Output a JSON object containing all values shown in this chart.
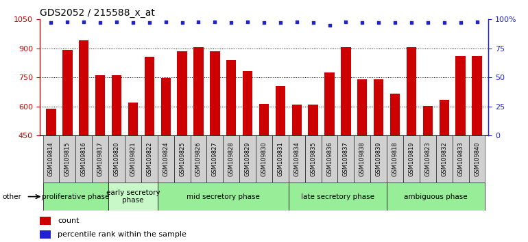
{
  "title": "GDS2052 / 215588_x_at",
  "samples": [
    "GSM109814",
    "GSM109815",
    "GSM109816",
    "GSM109817",
    "GSM109820",
    "GSM109821",
    "GSM109822",
    "GSM109824",
    "GSM109825",
    "GSM109826",
    "GSM109827",
    "GSM109828",
    "GSM109829",
    "GSM109830",
    "GSM109831",
    "GSM109834",
    "GSM109835",
    "GSM109836",
    "GSM109837",
    "GSM109838",
    "GSM109839",
    "GSM109818",
    "GSM109819",
    "GSM109823",
    "GSM109832",
    "GSM109833",
    "GSM109840"
  ],
  "counts": [
    590,
    893,
    940,
    762,
    762,
    620,
    856,
    748,
    884,
    908,
    886,
    840,
    784,
    614,
    705,
    608,
    608,
    775,
    905,
    742,
    742,
    668,
    905,
    601,
    635,
    859,
    862
  ],
  "percentile": [
    97,
    98,
    98,
    97,
    98,
    97,
    97,
    98,
    97,
    98,
    98,
    97,
    98,
    97,
    97,
    98,
    97,
    95,
    98,
    97,
    97,
    97,
    97,
    97,
    97,
    97,
    98
  ],
  "phases": [
    {
      "name": "proliferative phase",
      "start": 0,
      "end": 4,
      "color": "#98ee98"
    },
    {
      "name": "early secretory\nphase",
      "start": 4,
      "end": 7,
      "color": "#c8f8c8"
    },
    {
      "name": "mid secretory phase",
      "start": 7,
      "end": 15,
      "color": "#98ee98"
    },
    {
      "name": "late secretory phase",
      "start": 15,
      "end": 21,
      "color": "#98ee98"
    },
    {
      "name": "ambiguous phase",
      "start": 21,
      "end": 27,
      "color": "#98ee98"
    }
  ],
  "ylim_left": [
    450,
    1050
  ],
  "yticks_left": [
    450,
    600,
    750,
    900,
    1050
  ],
  "ylim_right": [
    0,
    100
  ],
  "yticks_right": [
    0,
    25,
    50,
    75,
    100
  ],
  "bar_color": "#CC0000",
  "dot_color": "#2222CC",
  "background_color": "#ffffff",
  "title_fontsize": 10,
  "tick_fontsize": 6.0,
  "phase_fontsize": 7.5,
  "label_fontsize": 8
}
